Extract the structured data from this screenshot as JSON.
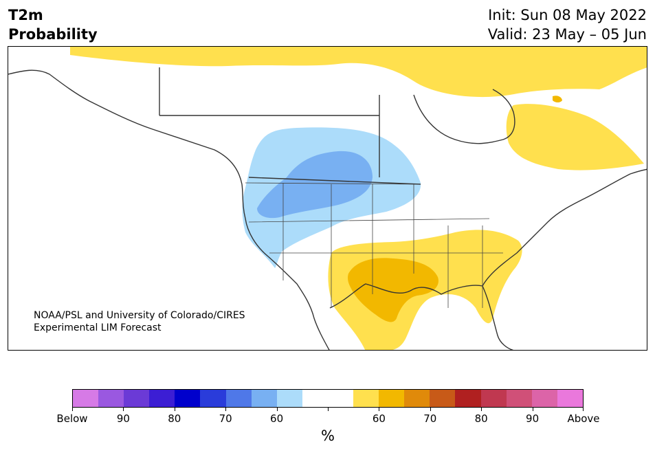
{
  "title": {
    "left_line1": "T2m",
    "left_line2": "Probability",
    "init": "Init: Sun 08 May 2022",
    "valid": "Valid: 23 May – 05 Jun"
  },
  "credit": {
    "line1": "NOAA/PSL and University of Colorado/CIRES",
    "line2": "Experimental LIM Forecast"
  },
  "colorbar": {
    "colors": [
      "#d67ae6",
      "#9a58e0",
      "#6b3ad6",
      "#3c1ed4",
      "#0000cc",
      "#2a3cda",
      "#4f78e8",
      "#78b0f2",
      "#acdcfa",
      "#ffffff",
      "#ffffff",
      "#ffe04e",
      "#f2b800",
      "#e08a0a",
      "#c85a18",
      "#b02020",
      "#c03850",
      "#d05078",
      "#dc64a8",
      "#ea78dc"
    ],
    "labels": [
      "Below",
      "90",
      "80",
      "70",
      "60",
      "",
      "60",
      "70",
      "80",
      "90",
      "Above"
    ],
    "unit": "%"
  },
  "map_colors": {
    "above_50": "#ffe04e",
    "above_60": "#f2b800",
    "above_70": "#e08a0a",
    "below_50": "#acdcfa",
    "below_60": "#78b0f2",
    "outline": "#333333"
  }
}
